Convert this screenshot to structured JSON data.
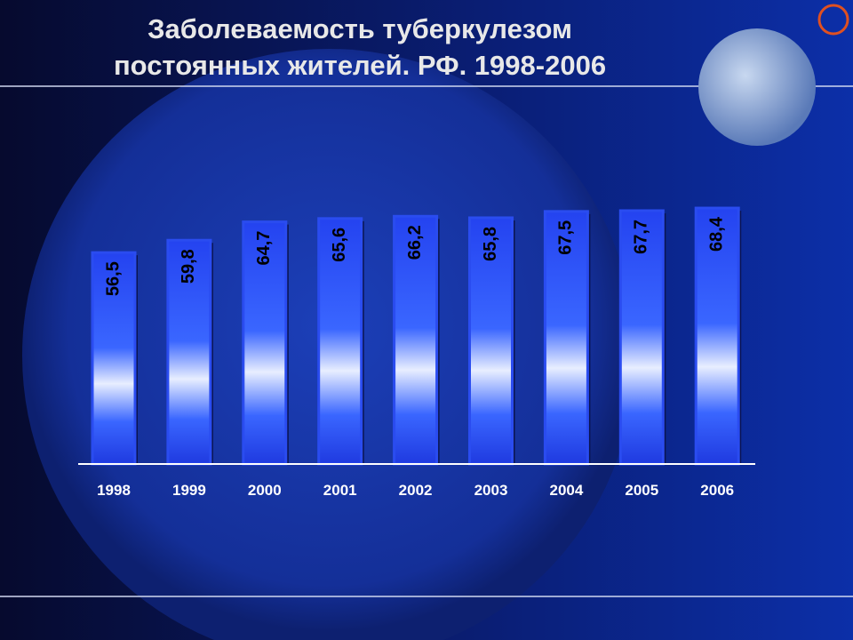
{
  "chart_data": {
    "type": "bar",
    "title": [
      "Заболеваемость туберкулезом",
      "постоянных жителей. РФ.  1998-2006"
    ],
    "categories": [
      "1998",
      "1999",
      "2000",
      "2001",
      "2002",
      "2003",
      "2004",
      "2005",
      "2006"
    ],
    "values": [
      56.5,
      59.8,
      64.7,
      65.6,
      66.2,
      65.8,
      67.5,
      67.7,
      68.4
    ],
    "value_labels": [
      "56,5",
      "59,8",
      "64,7",
      "65,6",
      "66,2",
      "65,8",
      "67,5",
      "67,7",
      "68,4"
    ],
    "color": "#2a4cf0"
  }
}
